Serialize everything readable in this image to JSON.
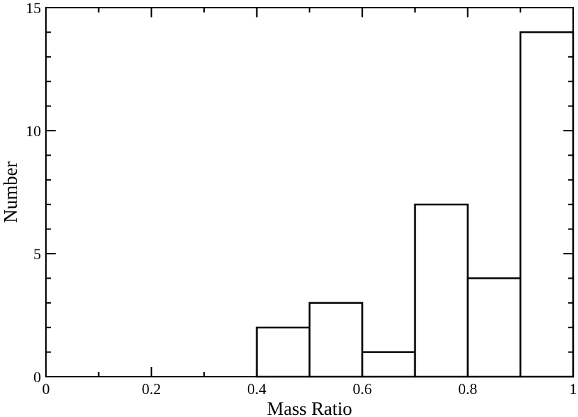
{
  "chart_data": {
    "type": "bar",
    "subtype": "histogram",
    "bins": [
      {
        "x0": 0.4,
        "x1": 0.5,
        "value": 2
      },
      {
        "x0": 0.5,
        "x1": 0.6,
        "value": 3
      },
      {
        "x0": 0.6,
        "x1": 0.7,
        "value": 1
      },
      {
        "x0": 0.7,
        "x1": 0.8,
        "value": 7
      },
      {
        "x0": 0.8,
        "x1": 0.9,
        "value": 4
      },
      {
        "x0": 0.9,
        "x1": 1.0,
        "value": 14
      }
    ],
    "xlabel": "Mass Ratio",
    "ylabel": "Number",
    "xlim": [
      0,
      1
    ],
    "ylim": [
      0,
      15
    ],
    "x_major_ticks": [
      0,
      0.2,
      0.4,
      0.6,
      0.8,
      1
    ],
    "x_tick_labels": [
      "0",
      "0.2",
      "0.4",
      "0.6",
      "0.8",
      "1"
    ],
    "x_minor_ticks": [
      0.1,
      0.3,
      0.5,
      0.7,
      0.9
    ],
    "y_major_ticks": [
      0,
      5,
      10,
      15
    ],
    "y_tick_labels": [
      "0",
      "5",
      "10",
      "15"
    ],
    "y_minor_ticks": [
      1,
      2,
      3,
      4,
      6,
      7,
      8,
      9,
      11,
      12,
      13,
      14
    ],
    "grid": false,
    "legend": "none",
    "colors": {
      "bar_fill": "#ffffff",
      "bar_stroke": "#000000"
    }
  }
}
